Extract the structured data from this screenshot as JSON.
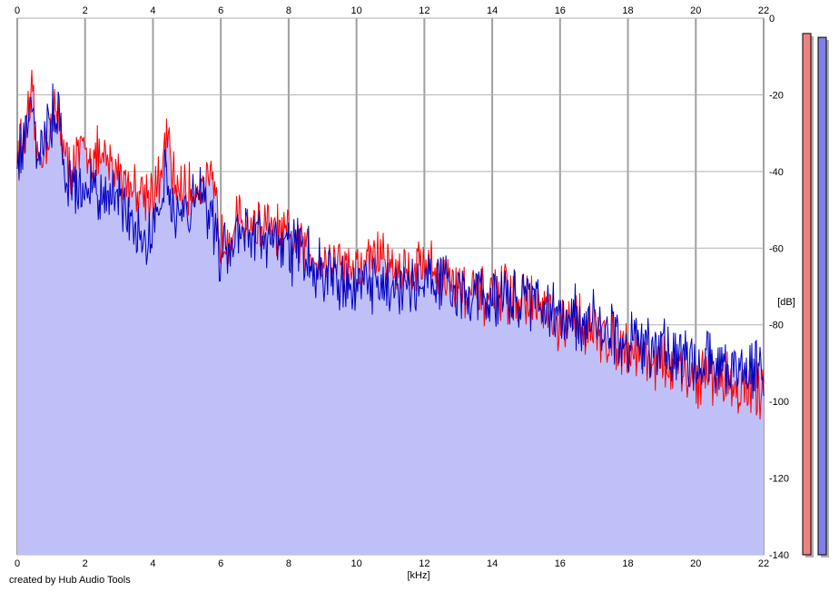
{
  "chart_data": {
    "type": "area",
    "xlabel": "[kHz]",
    "ylabel": "[dB]",
    "xlim": [
      0,
      22
    ],
    "ylim": [
      -140,
      0
    ],
    "xticks": [
      "0",
      "2",
      "4",
      "6",
      "8",
      "10",
      "12",
      "14",
      "16",
      "18",
      "20",
      "22"
    ],
    "yticks": [
      "0",
      "-20",
      "-40",
      "-60",
      "-80",
      "-100",
      "-120",
      "-140"
    ],
    "grid": true,
    "series": [
      {
        "color": "#ff0000",
        "values": [
          [
            0,
            -35
          ],
          [
            0.25,
            -30
          ],
          [
            0.45,
            -21
          ],
          [
            0.6,
            -38
          ],
          [
            0.9,
            -30
          ],
          [
            1.2,
            -24
          ],
          [
            1.5,
            -40
          ],
          [
            1.8,
            -36
          ],
          [
            2.0,
            -35
          ],
          [
            2.3,
            -36
          ],
          [
            2.6,
            -38
          ],
          [
            3.0,
            -40
          ],
          [
            3.4,
            -44
          ],
          [
            3.8,
            -45
          ],
          [
            4.0,
            -45
          ],
          [
            4.2,
            -44
          ],
          [
            4.4,
            -31
          ],
          [
            4.6,
            -42
          ],
          [
            5.0,
            -46
          ],
          [
            5.4,
            -43
          ],
          [
            5.8,
            -45
          ],
          [
            6.0,
            -58
          ],
          [
            6.5,
            -53
          ],
          [
            7.0,
            -54
          ],
          [
            7.5,
            -55
          ],
          [
            8.0,
            -58
          ],
          [
            8.5,
            -60
          ],
          [
            9.0,
            -63
          ],
          [
            9.5,
            -63
          ],
          [
            10.0,
            -67
          ],
          [
            10.5,
            -61
          ],
          [
            11.0,
            -64
          ],
          [
            11.5,
            -66
          ],
          [
            12.0,
            -63
          ],
          [
            12.5,
            -67
          ],
          [
            13.0,
            -70
          ],
          [
            13.5,
            -73
          ],
          [
            14.0,
            -73
          ],
          [
            14.5,
            -72
          ],
          [
            15.0,
            -74
          ],
          [
            15.5,
            -76
          ],
          [
            16.0,
            -82
          ],
          [
            16.5,
            -78
          ],
          [
            17.0,
            -82
          ],
          [
            17.5,
            -84
          ],
          [
            18.0,
            -86
          ],
          [
            18.5,
            -88
          ],
          [
            19.0,
            -90
          ],
          [
            19.5,
            -93
          ],
          [
            20.0,
            -94
          ],
          [
            20.5,
            -93
          ],
          [
            21.0,
            -95
          ],
          [
            21.5,
            -98
          ],
          [
            22.0,
            -96
          ]
        ]
      },
      {
        "color": "#0000c0",
        "values": [
          [
            0,
            -38
          ],
          [
            0.25,
            -28
          ],
          [
            0.45,
            -19
          ],
          [
            0.6,
            -36
          ],
          [
            0.9,
            -29
          ],
          [
            1.2,
            -23
          ],
          [
            1.5,
            -43
          ],
          [
            1.8,
            -45
          ],
          [
            2.0,
            -44
          ],
          [
            2.3,
            -45
          ],
          [
            2.6,
            -46
          ],
          [
            3.0,
            -48
          ],
          [
            3.4,
            -52
          ],
          [
            3.8,
            -56
          ],
          [
            4.0,
            -54
          ],
          [
            4.2,
            -50
          ],
          [
            4.4,
            -36
          ],
          [
            4.6,
            -50
          ],
          [
            5.0,
            -52
          ],
          [
            5.4,
            -42
          ],
          [
            5.8,
            -56
          ],
          [
            6.0,
            -62
          ],
          [
            6.5,
            -57
          ],
          [
            7.0,
            -55
          ],
          [
            7.5,
            -58
          ],
          [
            8.0,
            -60
          ],
          [
            8.5,
            -62
          ],
          [
            9.0,
            -66
          ],
          [
            9.5,
            -68
          ],
          [
            10.0,
            -72
          ],
          [
            10.5,
            -70
          ],
          [
            11.0,
            -70
          ],
          [
            11.5,
            -72
          ],
          [
            12.0,
            -68
          ],
          [
            12.5,
            -67
          ],
          [
            13.0,
            -72
          ],
          [
            13.5,
            -72
          ],
          [
            14.0,
            -74
          ],
          [
            14.5,
            -74
          ],
          [
            15.0,
            -72
          ],
          [
            15.5,
            -76
          ],
          [
            16.0,
            -78
          ],
          [
            16.5,
            -78
          ],
          [
            17.0,
            -80
          ],
          [
            17.5,
            -82
          ],
          [
            18.0,
            -84
          ],
          [
            18.5,
            -84
          ],
          [
            19.0,
            -86
          ],
          [
            19.5,
            -88
          ],
          [
            20.0,
            -90
          ],
          [
            20.5,
            -90
          ],
          [
            21.0,
            -92
          ],
          [
            21.5,
            -92
          ],
          [
            22.0,
            -93
          ]
        ]
      }
    ],
    "fill_color": "#c0c0f8",
    "meters": [
      {
        "color": "#f08080",
        "level_db": -4
      },
      {
        "color": "#8080e8",
        "level_db": -5
      }
    ]
  },
  "credit": "created by Hub Audio Tools"
}
